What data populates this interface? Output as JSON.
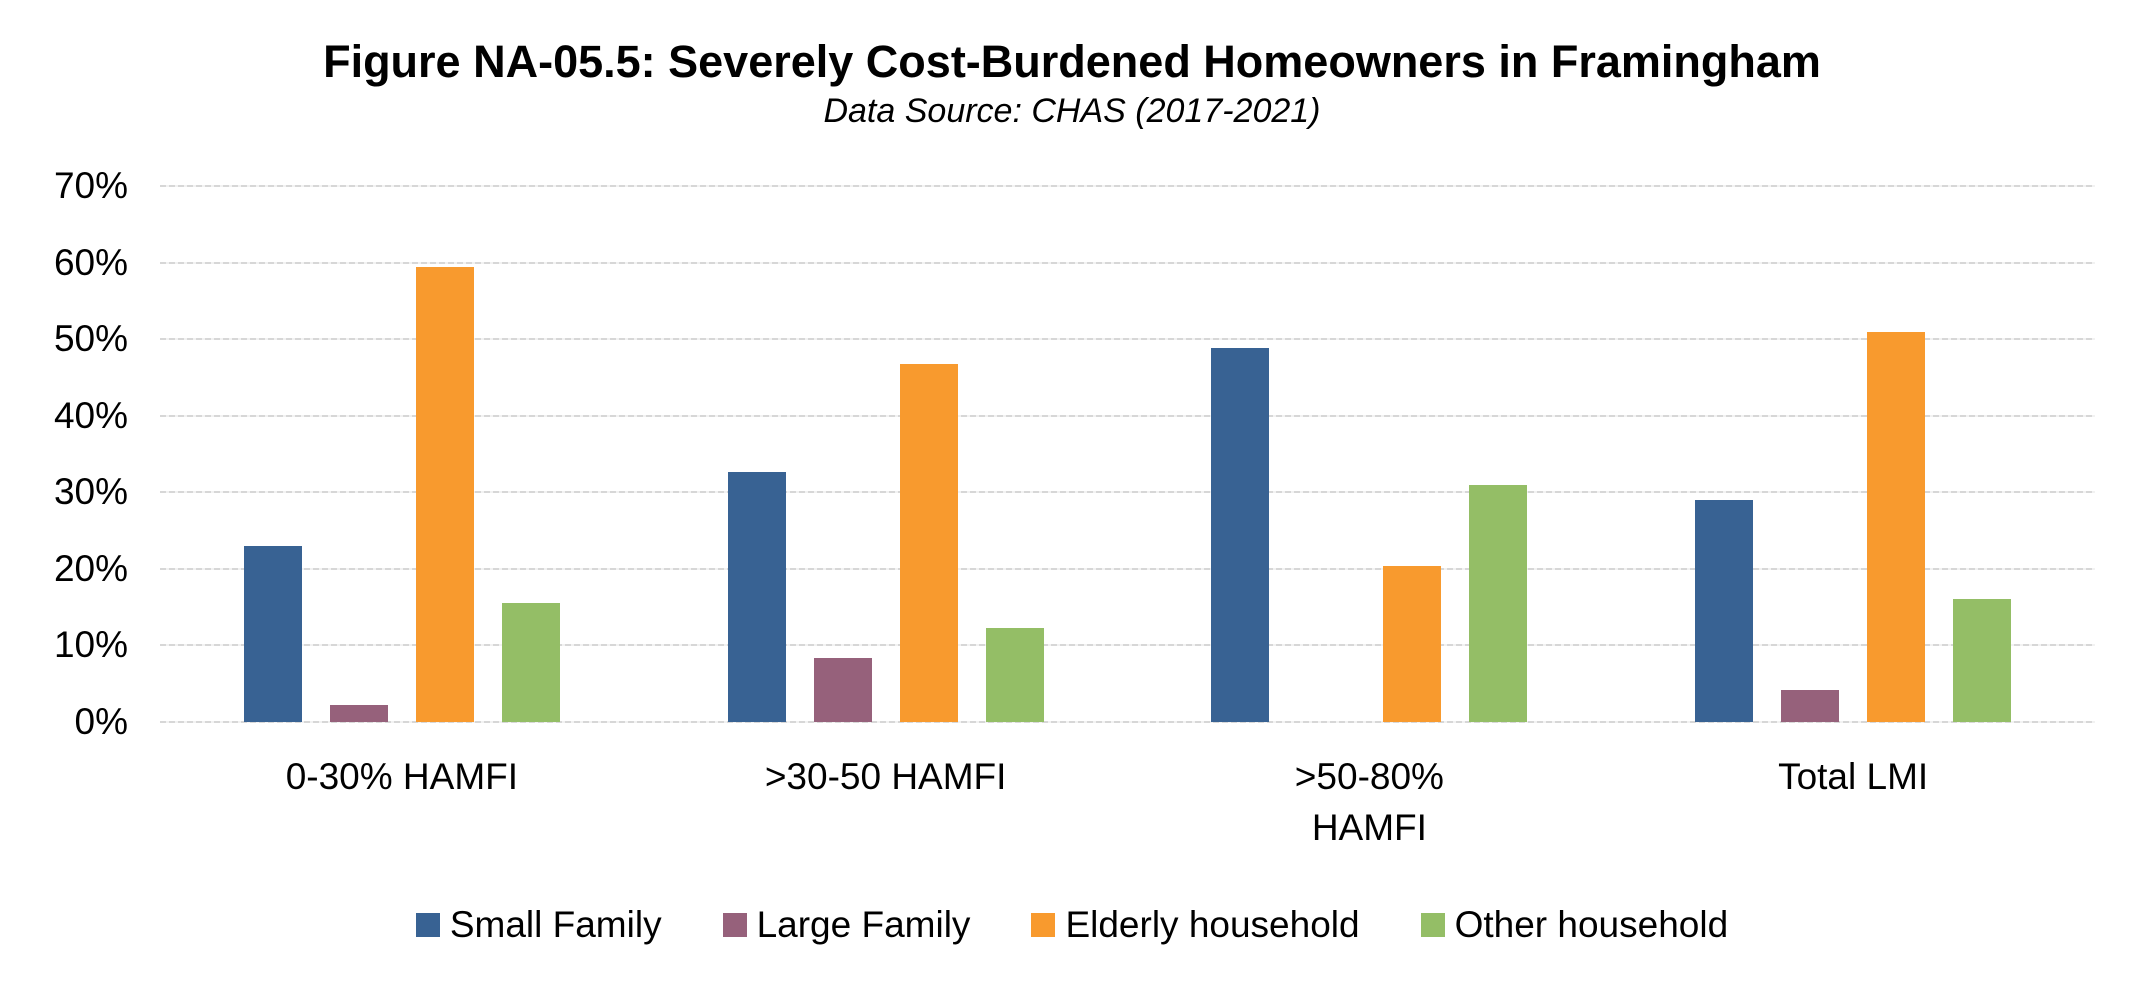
{
  "figure": {
    "title": "Figure NA-05.5: Severely Cost-Burdened Homeowners in Framingham",
    "subtitle": "Data Source: CHAS (2017-2021)"
  },
  "colors": {
    "small_family": "#386293",
    "large_family": "#96617B",
    "elderly_household": "#F89A2E",
    "other_household": "#94BE66",
    "gridline": "#D7D7D7",
    "text": "#000000",
    "background": "#FFFFFF"
  },
  "y_axis": {
    "tick_labels": [
      "70%",
      "60%",
      "50%",
      "40%",
      "30%",
      "20%",
      "10%",
      "0%"
    ],
    "min": 0,
    "max": 70,
    "step": 10
  },
  "x_axis": {
    "categories": [
      {
        "lines": [
          "0-30% HAMFI"
        ]
      },
      {
        "lines": [
          ">30-50 HAMFI"
        ]
      },
      {
        "lines": [
          ">50-80%",
          "HAMFI"
        ]
      },
      {
        "lines": [
          "Total LMI"
        ]
      }
    ]
  },
  "legend": {
    "items": [
      {
        "label": "Small Family",
        "color": "#386293"
      },
      {
        "label": "Large Family",
        "color": "#96617B"
      },
      {
        "label": "Elderly household",
        "color": "#F89A2E"
      },
      {
        "label": "Other household",
        "color": "#94BE66"
      }
    ]
  },
  "chart_data": {
    "type": "bar",
    "title": "Figure NA-05.5: Severely Cost-Burdened Homeowners in Framingham",
    "subtitle": "Data Source: CHAS (2017-2021)",
    "categories": [
      "0-30% HAMFI",
      ">30-50 HAMFI",
      ">50-80% HAMFI",
      "Total LMI"
    ],
    "series": [
      {
        "name": "Small Family",
        "color": "#386293",
        "values": [
          23.0,
          32.7,
          48.8,
          29.0
        ]
      },
      {
        "name": "Large Family",
        "color": "#96617B",
        "values": [
          2.2,
          8.4,
          0,
          4.2
        ]
      },
      {
        "name": "Elderly household",
        "color": "#F89A2E",
        "values": [
          59.4,
          46.7,
          20.4,
          51.0
        ]
      },
      {
        "name": "Other household",
        "color": "#94BE66",
        "values": [
          15.6,
          12.3,
          31.0,
          16.1
        ]
      }
    ],
    "ylabel": "",
    "xlabel": "",
    "ylim": [
      0,
      70
    ],
    "y_tick_step": 10,
    "y_tick_format": "percent",
    "grid": "horizontal",
    "legend_position": "bottom"
  }
}
